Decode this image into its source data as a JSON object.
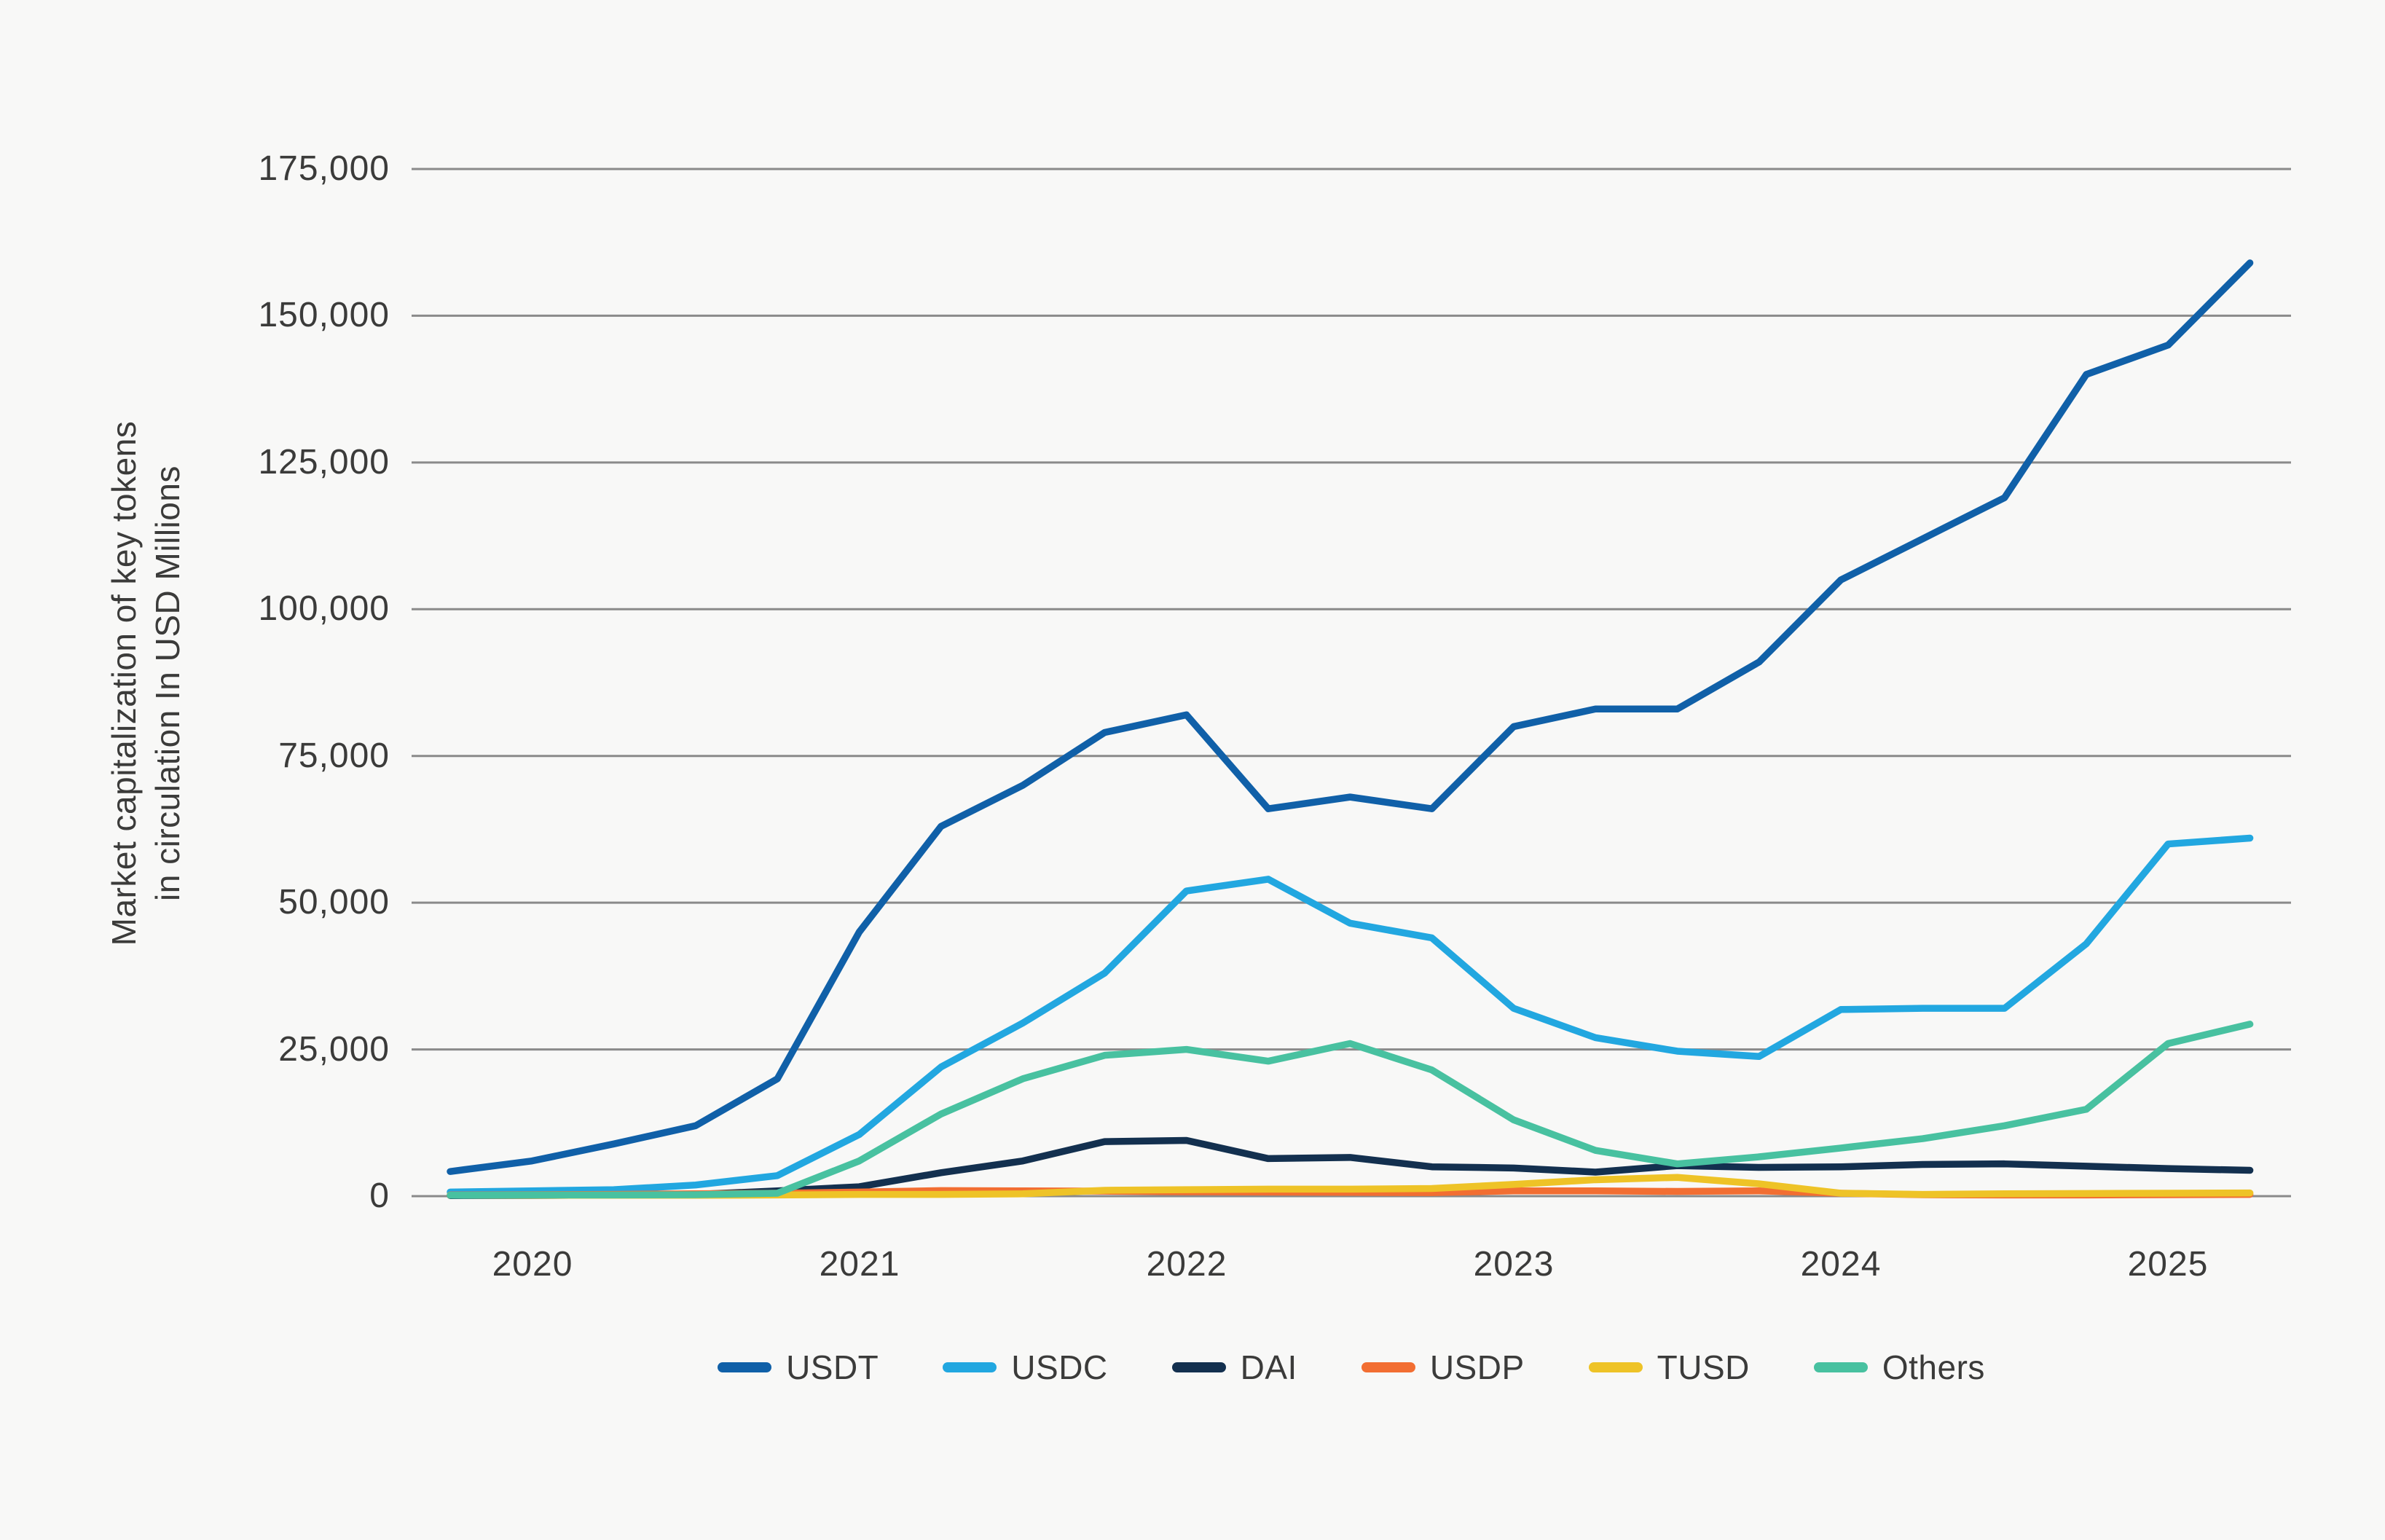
{
  "figure": {
    "background": "#f8f8f7",
    "grid_color": "#8a8a8a",
    "text_color": "#3b3b3a",
    "ylabel_line1": "Market capitalization of key tokens",
    "ylabel_line2": "in circulation In USD Millions"
  },
  "chart_data": {
    "type": "line",
    "title": "",
    "xlabel": "",
    "ylabel": "Market capitalization of key tokens in circulation In USD Millions",
    "grid": "horizontal",
    "legend_position": "bottom",
    "ylim": [
      0,
      175000
    ],
    "y_ticks": [
      0,
      25000,
      50000,
      75000,
      100000,
      125000,
      150000,
      175000
    ],
    "y_tick_labels": [
      "0",
      "25,000",
      "50,000",
      "75,000",
      "100,000",
      "125,000",
      "150,000",
      "175,000"
    ],
    "x_tick_labels": [
      "2020",
      "2021",
      "2022",
      "2023",
      "2024",
      "2025"
    ],
    "x": [
      2019.75,
      2020.0,
      2020.25,
      2020.5,
      2020.75,
      2021.0,
      2021.25,
      2021.5,
      2021.75,
      2022.0,
      2022.25,
      2022.5,
      2022.75,
      2023.0,
      2023.25,
      2023.5,
      2023.75,
      2024.0,
      2024.25,
      2024.5,
      2024.75,
      2025.0,
      2025.25
    ],
    "series": [
      {
        "name": "USDT",
        "color": "#1060a8",
        "values": [
          4200,
          6000,
          8900,
          12000,
          20000,
          45000,
          63000,
          70000,
          79000,
          82000,
          66000,
          68000,
          66000,
          80000,
          83000,
          83000,
          91000,
          105000,
          112000,
          119000,
          140000,
          145000,
          159000
        ]
      },
      {
        "name": "USDC",
        "color": "#22a7e0",
        "values": [
          700,
          900,
          1100,
          1900,
          3500,
          10500,
          22000,
          29500,
          38000,
          52000,
          54000,
          46500,
          44000,
          32000,
          27000,
          24700,
          23800,
          31800,
          32000,
          32000,
          43000,
          60000,
          61000
        ]
      },
      {
        "name": "DAI",
        "color": "#13304f",
        "values": [
          100,
          120,
          200,
          300,
          900,
          1600,
          4000,
          6000,
          9300,
          9500,
          6400,
          6600,
          5000,
          4800,
          4100,
          5200,
          4900,
          5000,
          5400,
          5500,
          5100,
          4700,
          4400
        ]
      },
      {
        "name": "USDP",
        "color": "#f26e32",
        "values": [
          200,
          250,
          300,
          400,
          500,
          700,
          950,
          900,
          850,
          750,
          700,
          650,
          600,
          900,
          900,
          800,
          900,
          500,
          250,
          200,
          200,
          250,
          300
        ]
      },
      {
        "name": "TUSD",
        "color": "#eec327",
        "values": [
          150,
          150,
          150,
          150,
          200,
          300,
          300,
          400,
          1000,
          1100,
          1200,
          1200,
          1300,
          2000,
          2800,
          3200,
          2100,
          500,
          300,
          400,
          450,
          500,
          550
        ]
      },
      {
        "name": "Others",
        "color": "#48c1a0",
        "values": [
          150,
          200,
          200,
          250,
          500,
          6000,
          14000,
          20000,
          24000,
          25000,
          23000,
          26000,
          21500,
          13000,
          7800,
          5500,
          6700,
          8200,
          9800,
          12000,
          14800,
          26000,
          29300
        ]
      }
    ]
  }
}
